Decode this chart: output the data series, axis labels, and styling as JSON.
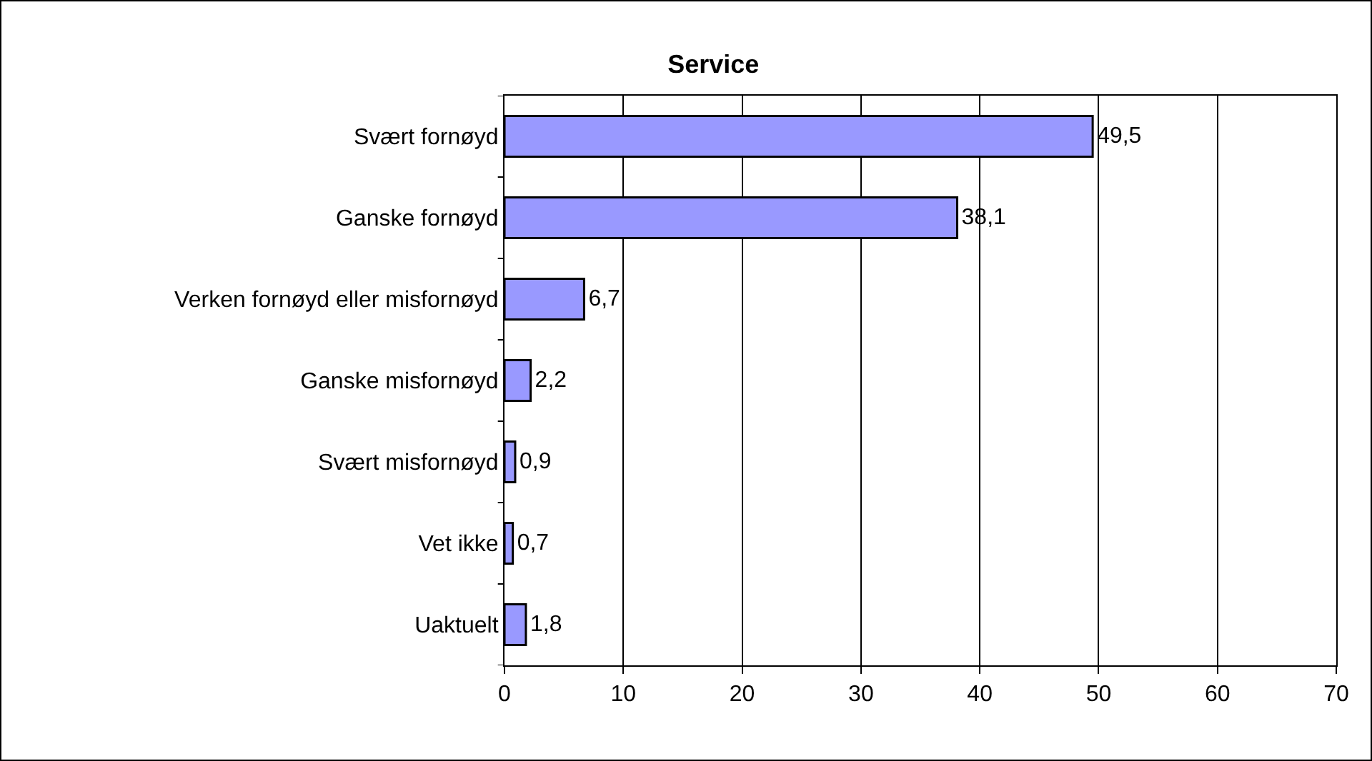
{
  "chart_data": {
    "type": "bar",
    "orientation": "horizontal",
    "title": "Service",
    "categories": [
      "Svært fornøyd",
      "Ganske fornøyd",
      "Verken fornøyd eller misfornøyd",
      "Ganske misfornøyd",
      "Svært misfornøyd",
      "Vet ikke",
      "Uaktuelt"
    ],
    "values": [
      49.5,
      38.1,
      6.7,
      2.2,
      0.9,
      0.7,
      1.8
    ],
    "value_labels": [
      "49,5",
      "38,1",
      "6,7",
      "2,2",
      "0,9",
      "0,7",
      "1,8"
    ],
    "color": "#9999ff",
    "xlim": [
      0,
      70
    ],
    "xticks": [
      0,
      10,
      20,
      30,
      40,
      50,
      60,
      70
    ],
    "grid": "x",
    "legend": false
  }
}
